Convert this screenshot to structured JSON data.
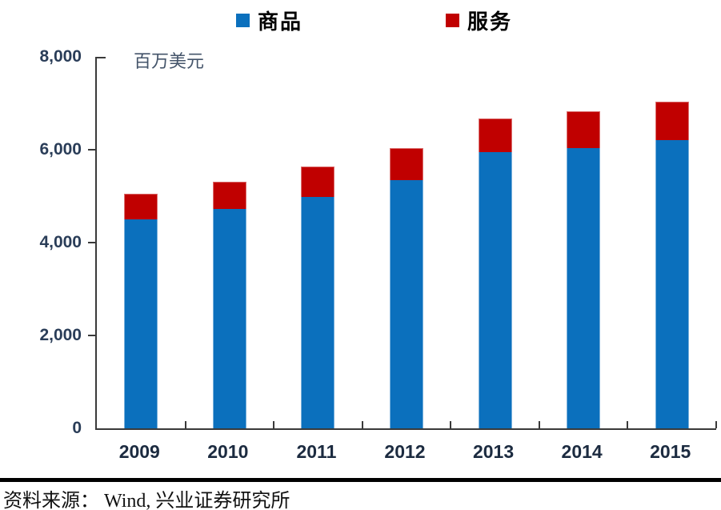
{
  "legend": {
    "items": [
      {
        "label": "商品",
        "color": "#0B70BD"
      },
      {
        "label": "服务",
        "color": "#C00000"
      }
    ]
  },
  "chart_data": {
    "type": "bar",
    "stacked": true,
    "title": "",
    "unit_label": "百万美元",
    "categories": [
      "2009",
      "2010",
      "2011",
      "2012",
      "2013",
      "2014",
      "2015"
    ],
    "series": [
      {
        "name": "商品",
        "color": "#0B70BD",
        "values": [
          4500,
          4720,
          4990,
          5340,
          5950,
          6030,
          6210
        ]
      },
      {
        "name": "服务",
        "color": "#C00000",
        "values": [
          550,
          590,
          640,
          700,
          720,
          800,
          820
        ]
      }
    ],
    "ylim": [
      0,
      8000
    ],
    "ytick_interval": 2000,
    "ytick_labels": [
      "0",
      "2,000",
      "4,000",
      "6,000",
      "8,000"
    ],
    "grid": false,
    "legend_position": "top"
  },
  "footer": {
    "source_label": "资料来源： Wind, 兴业证券研究所"
  }
}
